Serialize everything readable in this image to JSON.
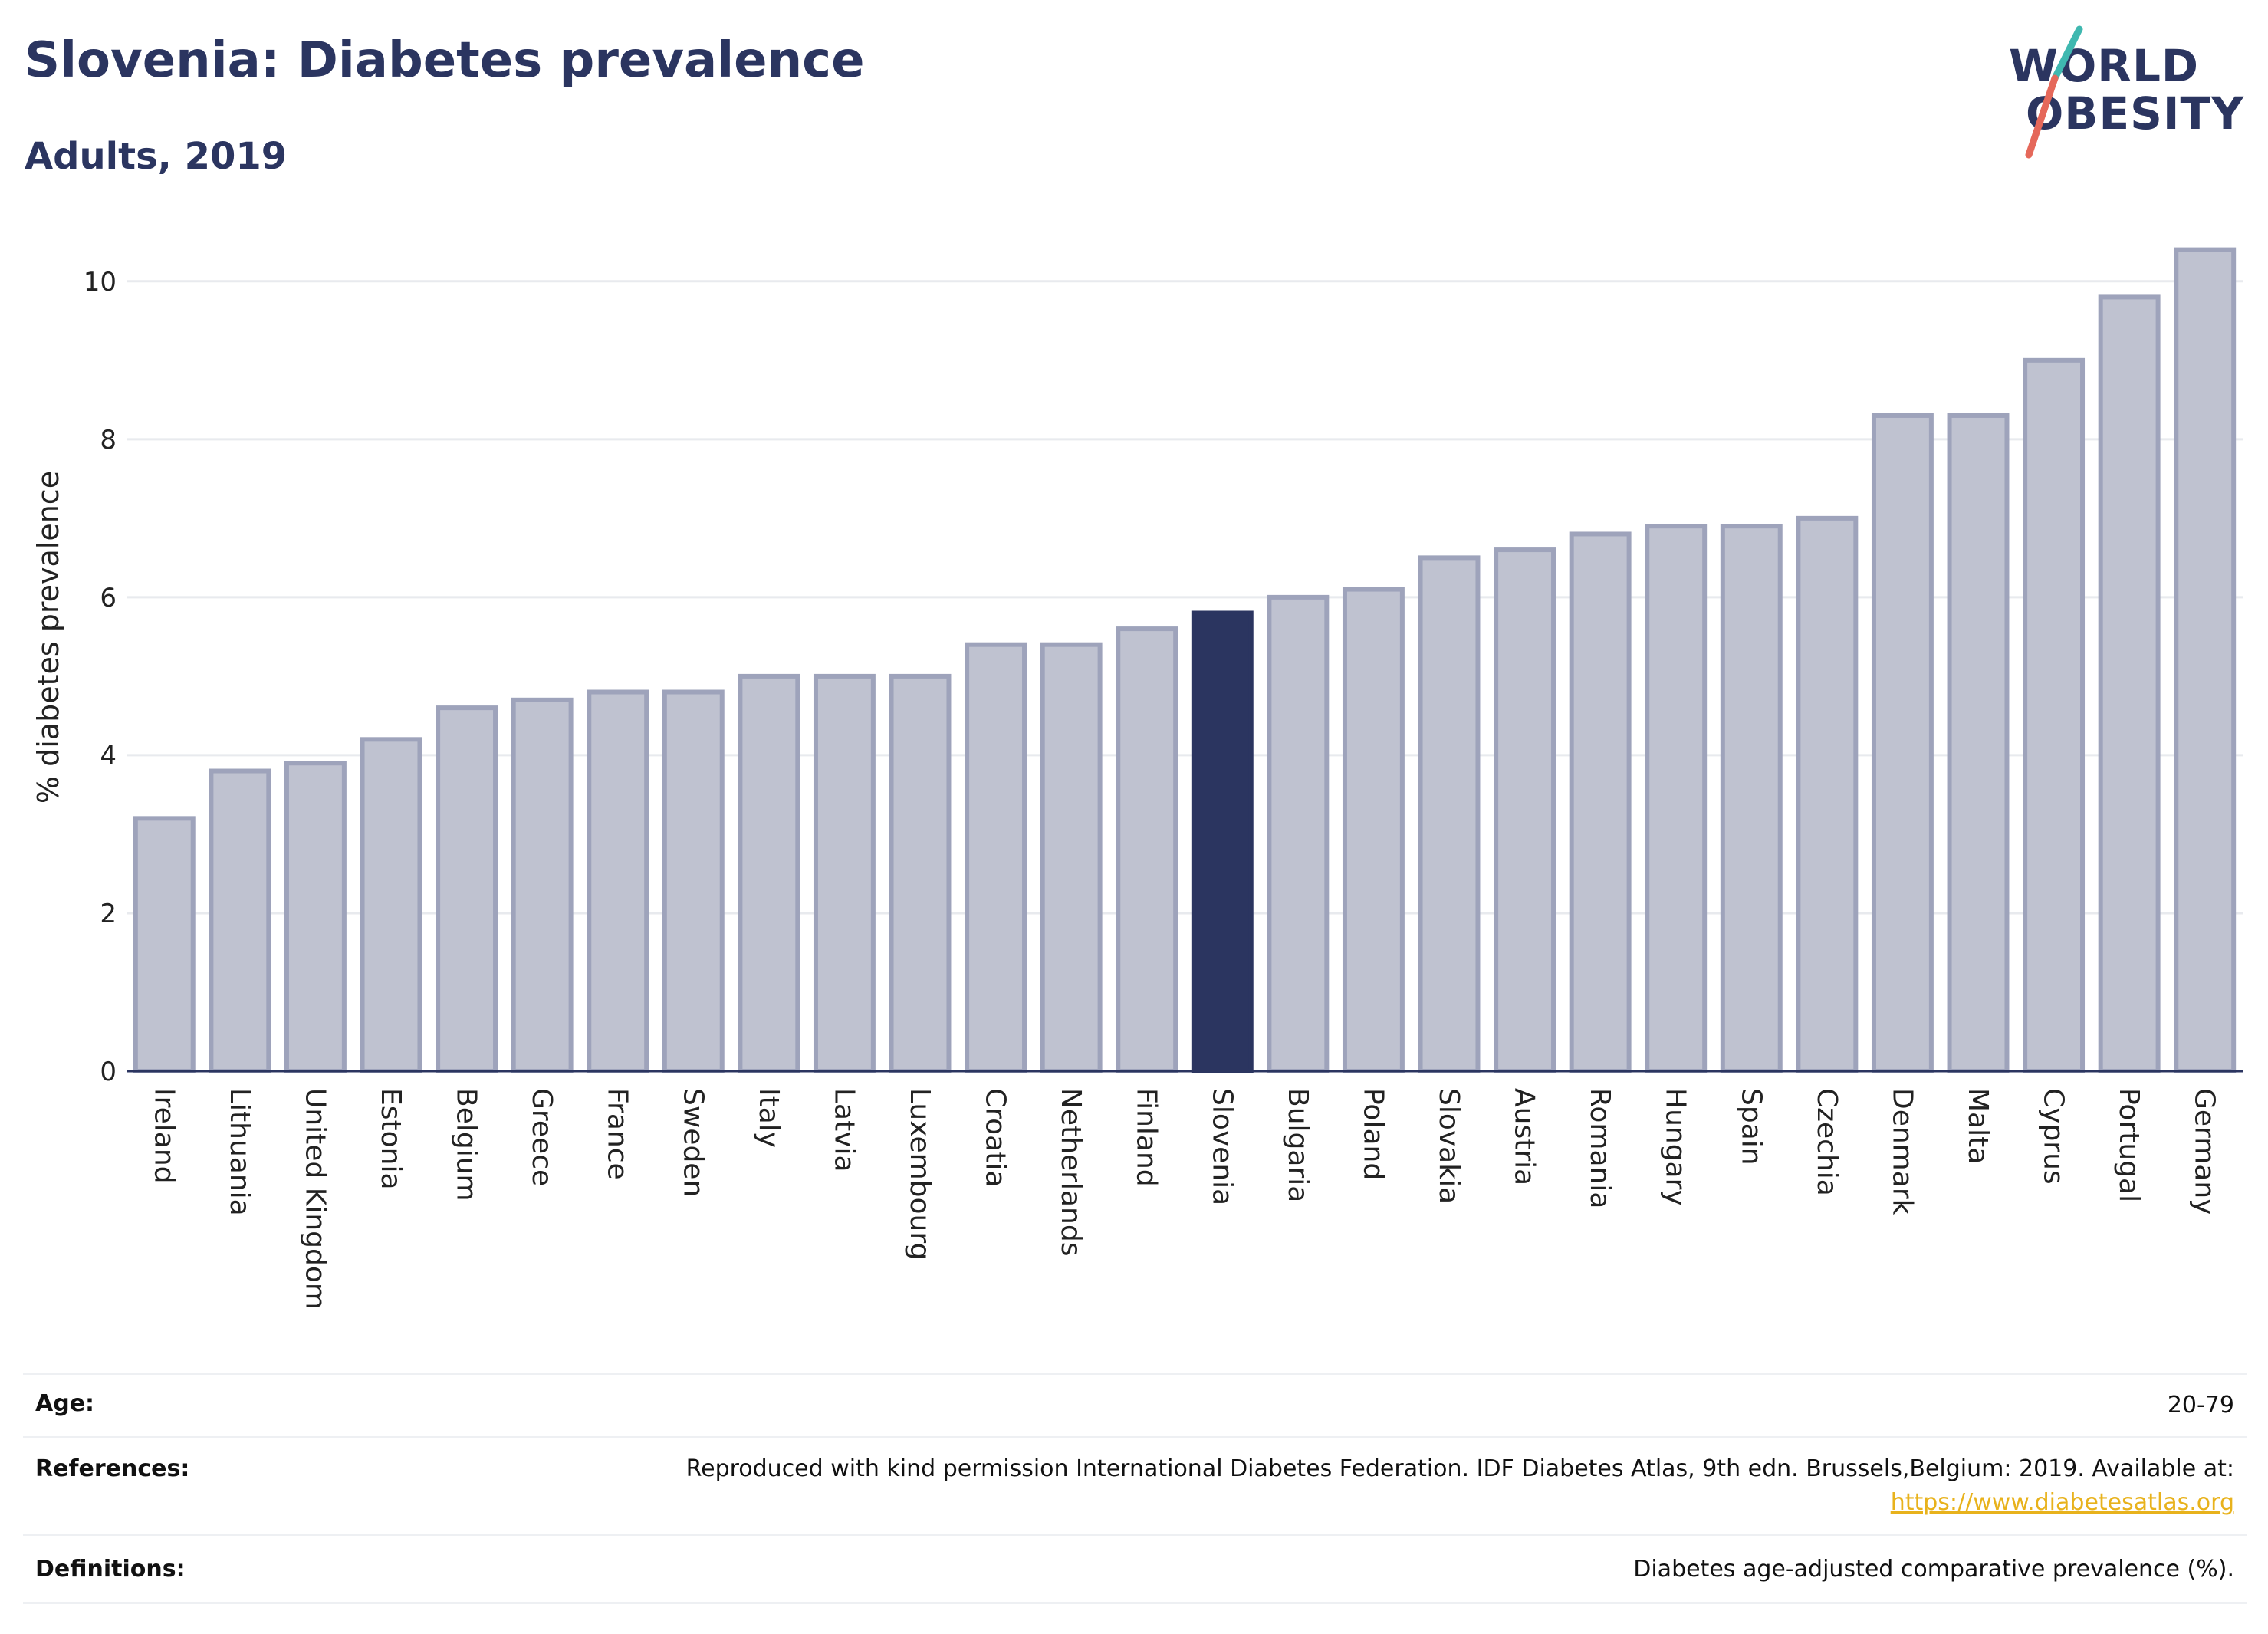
{
  "header": {
    "title": "Slovenia: Diabetes prevalence",
    "subtitle": "Adults, 2019"
  },
  "logo": {
    "line1": "WORLD",
    "line2": "OBESITY",
    "colors": {
      "text": "#2b3560",
      "accent_teal": "#3fb8b0",
      "accent_coral": "#e5685a"
    }
  },
  "colors": {
    "highlight_bar": "#2b3560",
    "other_bar_fill": "#bfc2d0",
    "other_bar_stroke": "#9ea3bb",
    "gridline": "#e8eaee",
    "zero_line": "#2b3560"
  },
  "chart_data": {
    "type": "bar",
    "ylabel": "% diabetes prevalence",
    "xlabel": "",
    "ylim": [
      0,
      10.6
    ],
    "yticks": [
      0,
      2,
      4,
      6,
      8,
      10
    ],
    "grid": true,
    "highlight": "Slovenia",
    "categories": [
      "Ireland",
      "Lithuania",
      "United Kingdom",
      "Estonia",
      "Belgium",
      "Greece",
      "France",
      "Sweden",
      "Italy",
      "Latvia",
      "Luxembourg",
      "Croatia",
      "Netherlands",
      "Finland",
      "Slovenia",
      "Bulgaria",
      "Poland",
      "Slovakia",
      "Austria",
      "Romania",
      "Hungary",
      "Spain",
      "Czechia",
      "Denmark",
      "Malta",
      "Cyprus",
      "Portugal",
      "Germany"
    ],
    "values": [
      3.2,
      3.8,
      3.9,
      4.2,
      4.6,
      4.7,
      4.8,
      4.8,
      5.0,
      5.0,
      5.0,
      5.4,
      5.4,
      5.6,
      5.8,
      6.0,
      6.1,
      6.5,
      6.6,
      6.8,
      6.9,
      6.9,
      7.0,
      8.3,
      8.3,
      9.0,
      9.8,
      10.4
    ]
  },
  "footer": {
    "age_label": "Age:",
    "age_value": "20-79",
    "references_label": "References:",
    "references_text": "Reproduced with kind permission International Diabetes Federation. IDF Diabetes Atlas, 9th edn. Brussels,Belgium: 2019. Available at:",
    "references_link": "https://www.diabetesatlas.org",
    "definitions_label": "Definitions:",
    "definitions_text": "Diabetes age-adjusted comparative prevalence (%)."
  }
}
